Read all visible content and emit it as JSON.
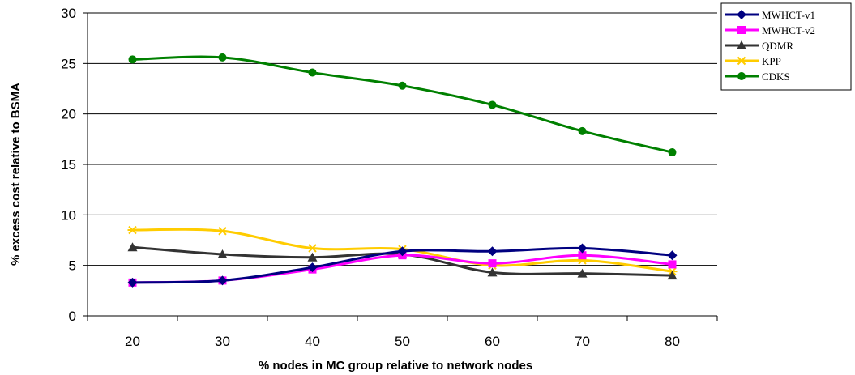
{
  "chart_data": {
    "type": "line",
    "x": [
      20,
      30,
      40,
      50,
      60,
      70,
      80
    ],
    "xlabel": "% nodes in MC group relative to network nodes",
    "ylabel": "% excess cost relative to BSMA",
    "ylim": [
      0,
      30
    ],
    "yticks": [
      0,
      5,
      10,
      15,
      20,
      25,
      30
    ],
    "grid": "horizontal",
    "legend": "top-right",
    "series": [
      {
        "name": "MWHCT-v1",
        "color": "#000080",
        "marker": "diamond",
        "values": [
          3.3,
          3.5,
          4.8,
          6.4,
          6.4,
          6.7,
          6.0
        ]
      },
      {
        "name": "MWHCT-v2",
        "color": "#FF00FF",
        "marker": "square",
        "values": [
          3.3,
          3.5,
          4.6,
          6.0,
          5.2,
          6.0,
          5.1
        ]
      },
      {
        "name": "QDMR",
        "color": "#333333",
        "marker": "triangle",
        "values": [
          6.8,
          6.1,
          5.8,
          6.1,
          4.3,
          4.2,
          4.0
        ]
      },
      {
        "name": "KPP",
        "color": "#FFCC00",
        "marker": "star",
        "values": [
          8.5,
          8.4,
          6.7,
          6.6,
          5.0,
          5.5,
          4.4
        ]
      },
      {
        "name": "CDKS",
        "color": "#008000",
        "marker": "circle",
        "values": [
          25.4,
          25.6,
          24.1,
          22.8,
          20.9,
          18.3,
          16.2
        ]
      }
    ]
  }
}
